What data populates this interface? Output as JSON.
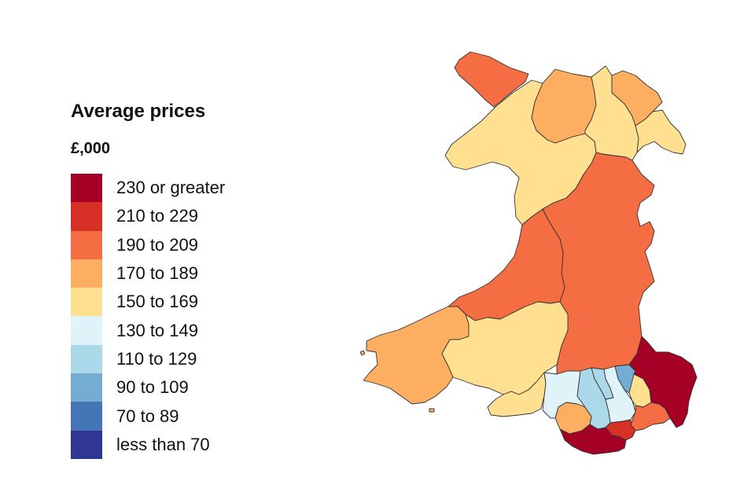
{
  "legend": {
    "title": "Average prices",
    "unit": "£,000",
    "bands": [
      {
        "label": "230 or greater",
        "color": "#a50026"
      },
      {
        "label": "210 to 229",
        "color": "#d73027"
      },
      {
        "label": "190 to 209",
        "color": "#f46d43"
      },
      {
        "label": "170 to 189",
        "color": "#fdae61"
      },
      {
        "label": "150 to 169",
        "color": "#fee090"
      },
      {
        "label": "130 to 149",
        "color": "#e0f3f8"
      },
      {
        "label": "110 to 129",
        "color": "#abd9e9"
      },
      {
        "label": "90 to 109",
        "color": "#74add1"
      },
      {
        "label": "70 to 89",
        "color": "#4575b4"
      },
      {
        "label": "less than 70",
        "color": "#313695"
      }
    ]
  },
  "map": {
    "regions": [
      {
        "id": "isle-of-anglesey",
        "band": "190 to 209"
      },
      {
        "id": "gwynedd",
        "band": "150 to 169"
      },
      {
        "id": "conwy",
        "band": "170 to 189"
      },
      {
        "id": "denbighshire",
        "band": "150 to 169"
      },
      {
        "id": "flintshire",
        "band": "170 to 189"
      },
      {
        "id": "wrexham",
        "band": "150 to 169"
      },
      {
        "id": "powys",
        "band": "190 to 209"
      },
      {
        "id": "ceredigion",
        "band": "190 to 209"
      },
      {
        "id": "pembrokeshire",
        "band": "170 to 189"
      },
      {
        "id": "carmarthenshire",
        "band": "150 to 169"
      },
      {
        "id": "swansea",
        "band": "150 to 169"
      },
      {
        "id": "neath-port-talbot",
        "band": "130 to 149"
      },
      {
        "id": "bridgend",
        "band": "170 to 189"
      },
      {
        "id": "rhondda-cynon-taf",
        "band": "110 to 129"
      },
      {
        "id": "merthyr-tydfil",
        "band": "110 to 129"
      },
      {
        "id": "caerphilly",
        "band": "130 to 149"
      },
      {
        "id": "blaenau-gwent",
        "band": "90 to 109"
      },
      {
        "id": "torfaen",
        "band": "150 to 169"
      },
      {
        "id": "monmouthshire",
        "band": "230 or greater"
      },
      {
        "id": "newport",
        "band": "190 to 209"
      },
      {
        "id": "cardiff",
        "band": "210 to 229"
      },
      {
        "id": "vale-of-glamorgan",
        "band": "230 or greater"
      }
    ]
  }
}
